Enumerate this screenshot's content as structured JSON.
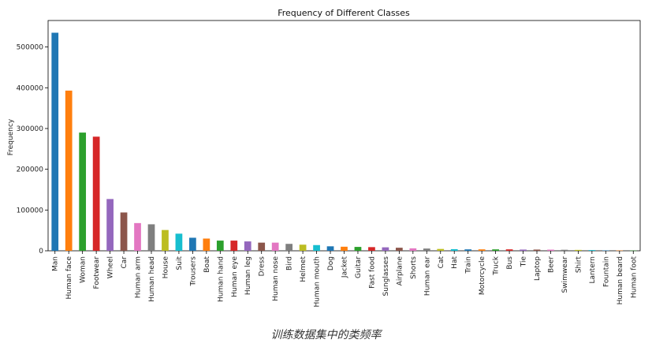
{
  "chart_data": {
    "type": "bar",
    "title": "Frequency of Different Classes",
    "xlabel": "",
    "ylabel": "Frequency",
    "ylim": [
      0,
      565000
    ],
    "yticks": [
      0,
      100000,
      200000,
      300000,
      400000,
      500000
    ],
    "ytick_labels": [
      "0",
      "100000",
      "200000",
      "300000",
      "400000",
      "500000"
    ],
    "grid": false,
    "legend": "none",
    "categories": [
      "Man",
      "Human face",
      "Woman",
      "Footwear",
      "Wheel",
      "Car",
      "Human arm",
      "Human head",
      "House",
      "Suit",
      "Trousers",
      "Boat",
      "Human hand",
      "Human eye",
      "Human leg",
      "Dress",
      "Human nose",
      "Bird",
      "Helmet",
      "Human mouth",
      "Dog",
      "Jacket",
      "Guitar",
      "Fast food",
      "Sunglasses",
      "Airplane",
      "Shorts",
      "Human ear",
      "Cat",
      "Hat",
      "Train",
      "Motorcycle",
      "Truck",
      "Bus",
      "Tie",
      "Laptop",
      "Beer",
      "Swimwear",
      "Shirt",
      "Lantern",
      "Fountain",
      "Human beard",
      "Human foot"
    ],
    "values": [
      535000,
      393000,
      290000,
      280000,
      127000,
      94000,
      68000,
      65000,
      51000,
      42000,
      32000,
      30000,
      25000,
      25000,
      23000,
      20000,
      20000,
      17000,
      15000,
      14000,
      11000,
      10000,
      9500,
      9000,
      8500,
      7500,
      6000,
      5500,
      4500,
      4000,
      3500,
      3500,
      3500,
      3500,
      3000,
      3000,
      2800,
      2500,
      2200,
      1800,
      1000,
      800,
      600
    ],
    "colors": [
      "#1f77b4",
      "#ff7f0e",
      "#2ca02c",
      "#d62728",
      "#9467bd",
      "#8c564b",
      "#e377c2",
      "#7f7f7f",
      "#bcbd22",
      "#17becf"
    ]
  },
  "caption": "训练数据集中的类频率"
}
